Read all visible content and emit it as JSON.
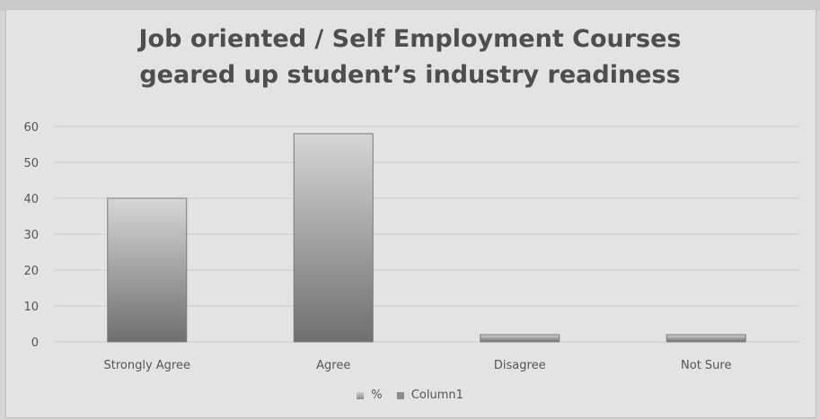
{
  "chart_data": {
    "type": "bar",
    "title": "Job oriented / Self Employment Courses geared up student’s industry readiness",
    "title_lines": [
      "Job oriented / Self Employment Courses",
      "geared up student’s industry readiness"
    ],
    "categories": [
      "Strongly Agree",
      "Agree",
      "Disagree",
      "Not Sure"
    ],
    "series": [
      {
        "name": "%",
        "values": [
          40,
          58,
          2,
          2
        ]
      },
      {
        "name": "Column1",
        "values": [
          0,
          0,
          0,
          0
        ]
      }
    ],
    "ylim": [
      0,
      60
    ],
    "yticks": [
      0,
      10,
      20,
      30,
      40,
      50,
      60
    ],
    "grid": true,
    "legend_position": "bottom",
    "colors": {
      "bar_top": "#d6d6d6",
      "bar_bottom": "#6f6f6f",
      "gridline": "#cdcdcd",
      "axis_text": "#555555"
    }
  }
}
